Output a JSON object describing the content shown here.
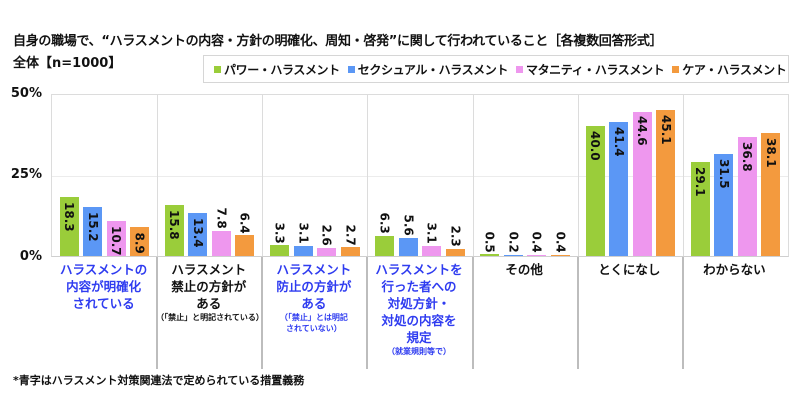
{
  "header": {
    "title": "自身の職場で、“ハラスメントの内容・方針の明確化、周知・啓発”に関して行われていること［各複数回答形式］",
    "subtitle": "全体【n=1000】"
  },
  "legend": [
    {
      "label": "パワー・ハラスメント",
      "color": "#9acd3a"
    },
    {
      "label": "セクシュアル・ハラスメント",
      "color": "#5b97f5"
    },
    {
      "label": "マタニティ・ハラスメント",
      "color": "#ee97ee"
    },
    {
      "label": "ケア・ハラスメント",
      "color": "#f39a3e"
    }
  ],
  "axis": {
    "ticks": [
      "50%",
      "25%",
      "0%"
    ]
  },
  "categories": [
    {
      "label": "ハラスメントの内容が明確化されている",
      "lines": [
        "ハラスメントの",
        "内容が明確化",
        "されている"
      ],
      "note": "",
      "blue": true
    },
    {
      "label": "ハラスメント禁止の方針がある",
      "lines": [
        "ハラスメント",
        "禁止の方針が",
        "ある"
      ],
      "note": "（「禁止」と明記されている）",
      "blue": false
    },
    {
      "label": "ハラスメント防止の方針がある",
      "lines": [
        "ハラスメント",
        "防止の方針が",
        "ある"
      ],
      "note": "（「禁止」とは明記されていない）",
      "blue": true
    },
    {
      "label": "ハラスメントを行った者への対処方針・対処の内容を規定",
      "lines": [
        "ハラスメントを",
        "行った者への",
        "対処方針・",
        "対処の内容を",
        "規定"
      ],
      "note": "（就業規則等で）",
      "blue": true
    },
    {
      "label": "その他",
      "lines": [
        "その他"
      ],
      "note": "",
      "blue": false
    },
    {
      "label": "とくになし",
      "lines": [
        "とくになし"
      ],
      "note": "",
      "blue": false
    },
    {
      "label": "わからない",
      "lines": [
        "わからない"
      ],
      "note": "",
      "blue": false
    }
  ],
  "footnote": "*青字はハラスメント対策関連法で定められている措置義務",
  "chart_data": {
    "type": "bar",
    "title": "自身の職場で、“ハラスメントの内容・方針の明確化、周知・啓発”に関して行われていること［各複数回答形式］",
    "subtitle": "全体【n=1000】",
    "xlabel": "",
    "ylabel": "%",
    "ylim": [
      0,
      50
    ],
    "yticks": [
      0,
      25,
      50
    ],
    "grid": true,
    "legend_position": "top-right",
    "categories": [
      "ハラスメントの内容が明確化されている",
      "ハラスメント禁止の方針がある（「禁止」と明記されている）",
      "ハラスメント防止の方針がある（「禁止」とは明記されていない）",
      "ハラスメントを行った者への対処方針・対処の内容を規定（就業規則等で）",
      "その他",
      "とくになし",
      "わからない"
    ],
    "series": [
      {
        "name": "パワー・ハラスメント",
        "color": "#9acd3a",
        "values": [
          18.3,
          15.8,
          3.3,
          6.3,
          0.5,
          40.0,
          29.1
        ]
      },
      {
        "name": "セクシュアル・ハラスメント",
        "color": "#5b97f5",
        "values": [
          15.2,
          13.4,
          3.1,
          5.6,
          0.2,
          41.4,
          31.5
        ]
      },
      {
        "name": "マタニティ・ハラスメント",
        "color": "#ee97ee",
        "values": [
          10.7,
          7.8,
          2.6,
          3.1,
          0.4,
          44.6,
          36.8
        ]
      },
      {
        "name": "ケア・ハラスメント",
        "color": "#f39a3e",
        "values": [
          8.9,
          6.4,
          2.7,
          2.3,
          0.4,
          45.1,
          38.1
        ]
      }
    ],
    "value_labels": [
      [
        "18.3",
        "15.8",
        "3.3",
        "6.3",
        "0.5",
        "40.0",
        "29.1"
      ],
      [
        "15.2",
        "13.4",
        "3.1",
        "5.6",
        "0.2",
        "41.4",
        "31.5"
      ],
      [
        "10.7",
        "7.8",
        "2.6",
        "3.1",
        "0.4",
        "44.6",
        "36.8"
      ],
      [
        "8.9",
        "6.4",
        "2.7",
        "2.3",
        "0.4",
        "45.1",
        "38.1"
      ]
    ],
    "annotations": [
      "*青字はハラスメント対策関連法で定められている措置義務"
    ]
  }
}
